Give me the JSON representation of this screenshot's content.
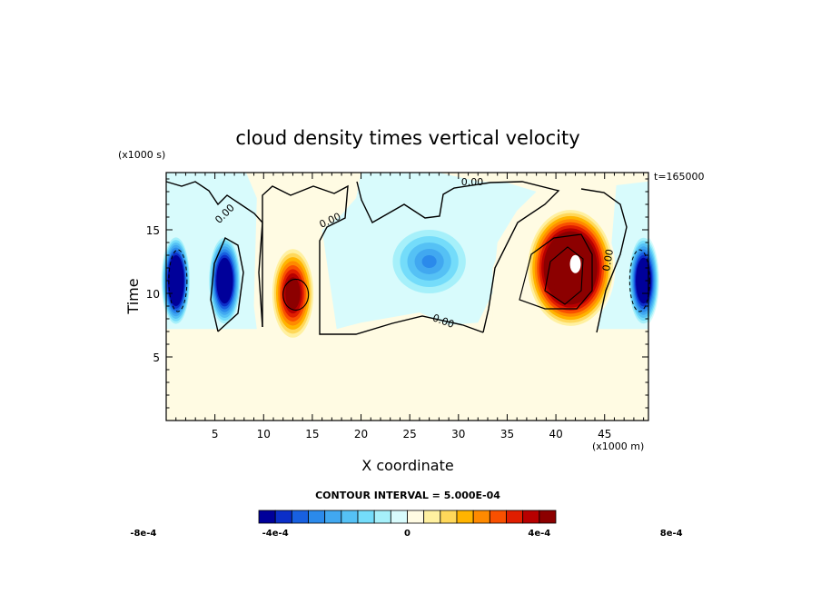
{
  "chart_data": {
    "type": "heatmap",
    "title": "cloud density times vertical velocity",
    "xlabel": "X coordinate",
    "ylabel": "Time",
    "x_unit": "(x1000 m)",
    "y_unit": "(x1000 s)",
    "time_stamp": "t=165000",
    "xlim": [
      0,
      49.5
    ],
    "ylim": [
      0,
      19.5
    ],
    "x_ticks": [
      "5",
      "10",
      "15",
      "20",
      "25",
      "30",
      "35",
      "40",
      "45"
    ],
    "y_ticks": [
      "5",
      "10",
      "15"
    ],
    "contour_interval_text": "CONTOUR INTERVAL = 5.000E-04",
    "contour_labels": [
      "0.00",
      "0.00",
      "0.00",
      "0.00",
      "0.00"
    ],
    "colorbar": {
      "tick_labels": [
        "-8e-4",
        "-4e-4",
        "0",
        "4e-4",
        "8e-4"
      ],
      "tick_values": [
        -0.0008,
        -0.0004,
        0,
        0.0004,
        0.0008
      ],
      "colors": [
        "#00009a",
        "#0b2fc8",
        "#1860e0",
        "#2b8aeb",
        "#41a8f0",
        "#55c1f5",
        "#74dcfa",
        "#a6f0fa",
        "#d8fbfc",
        "#fffbe3",
        "#fff0a0",
        "#ffd85a",
        "#ffb400",
        "#ff8a00",
        "#f95000",
        "#e01e00",
        "#b80000",
        "#8c0000"
      ]
    },
    "background_value": 0,
    "features": [
      {
        "sign": "negative",
        "x_center": 1.0,
        "t_center": 11.0,
        "peak": -0.0009
      },
      {
        "sign": "negative",
        "x_center": 6.0,
        "t_center": 11.0,
        "peak": -0.0008
      },
      {
        "sign": "positive",
        "x_center": 13.0,
        "t_center": 10.0,
        "peak": 0.0006
      },
      {
        "sign": "negative",
        "x_center": 27.0,
        "t_center": 12.5,
        "peak": -0.0003
      },
      {
        "sign": "positive",
        "x_center": 41.5,
        "t_center": 12.0,
        "peak": 0.001
      },
      {
        "sign": "negative",
        "x_center": 49.0,
        "t_center": 11.0,
        "peak": -0.0008
      }
    ]
  }
}
